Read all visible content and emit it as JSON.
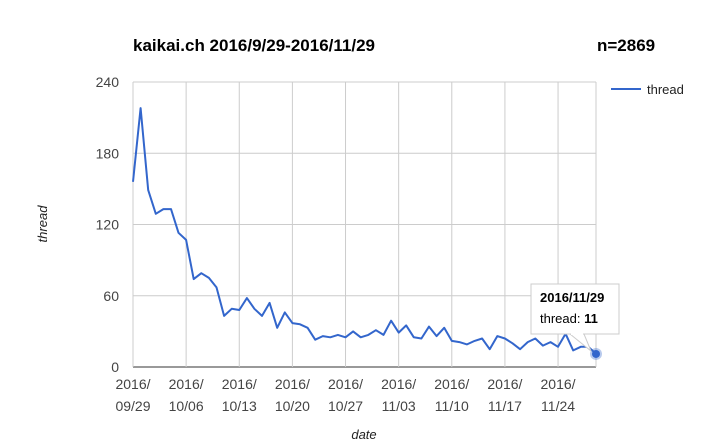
{
  "title": "kaikai.ch 2016/9/29-2016/11/29",
  "n_label": "n=2869",
  "tooltip": {
    "date": "2016/11/29",
    "series": "thread",
    "value": "11"
  },
  "chart_data": {
    "type": "line",
    "xlabel": "date",
    "ylabel": "thread",
    "ylim": [
      0,
      240
    ],
    "yticks": [
      0,
      60,
      120,
      180,
      240
    ],
    "x_start": "2016/09/29",
    "x_end": "2016/11/29",
    "xticks": [
      {
        "date": "2016/09/29",
        "line1": "2016/",
        "line2": "09/29"
      },
      {
        "date": "2016/10/06",
        "line1": "2016/",
        "line2": "10/06"
      },
      {
        "date": "2016/10/13",
        "line1": "2016/",
        "line2": "10/13"
      },
      {
        "date": "2016/10/20",
        "line1": "2016/",
        "line2": "10/20"
      },
      {
        "date": "2016/10/27",
        "line1": "2016/",
        "line2": "10/27"
      },
      {
        "date": "2016/11/03",
        "line1": "2016/",
        "line2": "11/03"
      },
      {
        "date": "2016/11/10",
        "line1": "2016/",
        "line2": "11/10"
      },
      {
        "date": "2016/11/17",
        "line1": "2016/",
        "line2": "11/17"
      },
      {
        "date": "2016/11/24",
        "line1": "2016/",
        "line2": "11/24"
      }
    ],
    "grid": true,
    "legend": "right",
    "series": [
      {
        "name": "thread",
        "color": "#3366cc",
        "values": [
          156,
          218,
          149,
          129,
          133,
          133,
          113,
          107,
          74,
          79,
          75,
          67,
          43,
          49,
          48,
          58,
          49,
          43,
          54,
          33,
          46,
          37,
          36,
          33,
          23,
          26,
          25,
          27,
          25,
          30,
          25,
          27,
          31,
          27,
          39,
          29,
          35,
          25,
          24,
          34,
          26,
          33,
          22,
          21,
          19,
          22,
          24,
          15,
          26,
          24,
          20,
          15,
          21,
          24,
          18,
          21,
          17,
          28,
          14,
          17,
          17,
          11
        ]
      }
    ]
  }
}
